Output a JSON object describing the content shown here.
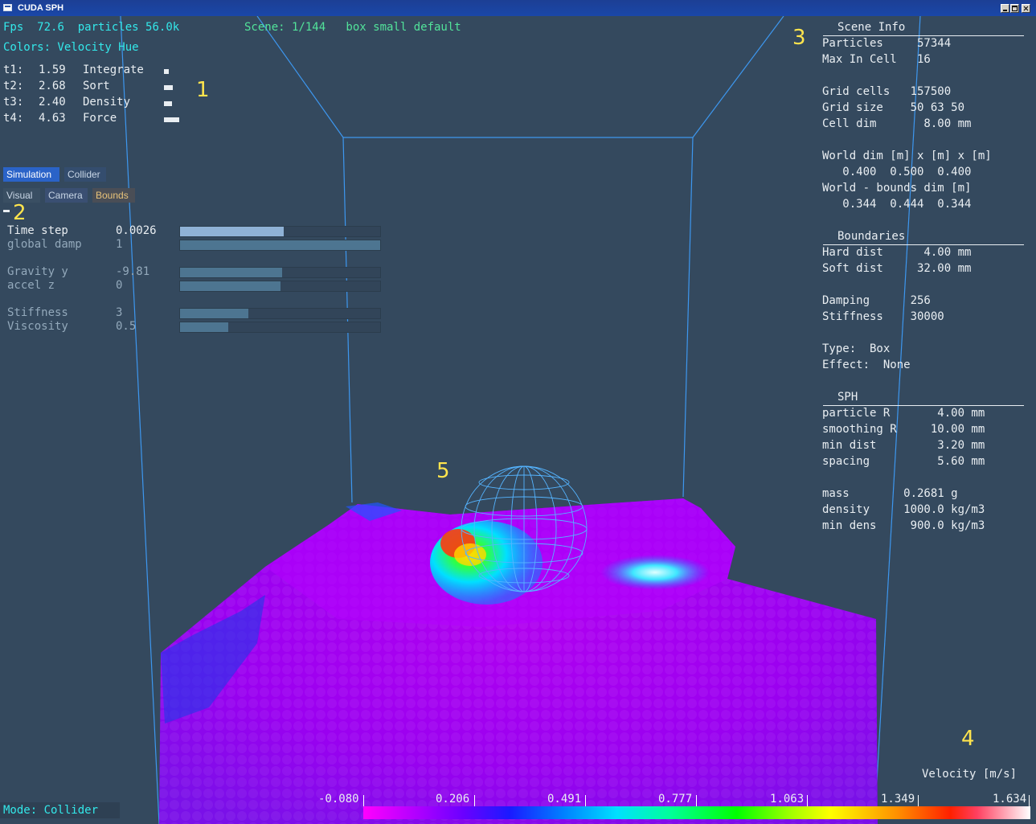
{
  "window": {
    "title": "CUDA SPH"
  },
  "hud": {
    "fps_label": "Fps",
    "fps_value": "72.6",
    "particles_label": "particles",
    "particles_value": "56.0k",
    "scene": "Scene: 1/144   box small default",
    "colors": "Colors: Velocity Hue",
    "timings": [
      {
        "id": "t1:",
        "value": "1.59",
        "name": "Integrate"
      },
      {
        "id": "t2:",
        "value": "2.68",
        "name": "Sort"
      },
      {
        "id": "t3:",
        "value": "2.40",
        "name": "Density"
      },
      {
        "id": "t4:",
        "value": "4.63",
        "name": "Force"
      }
    ]
  },
  "markers": [
    "1",
    "2",
    "3",
    "4",
    "5"
  ],
  "tabs": {
    "row1": [
      "Simulation",
      "Collider"
    ],
    "row2": [
      "Visual",
      "Camera",
      "Bounds"
    ],
    "active": "Simulation"
  },
  "params": [
    {
      "label": "Time step",
      "value": "0.0026",
      "fill": 0.52
    },
    {
      "label": "global damp",
      "value": "1",
      "fill": 1.0
    },
    {
      "label": "Gravity y",
      "value": "-9.81",
      "fill": 0.51
    },
    {
      "label": "accel z",
      "value": "0",
      "fill": 0.5
    },
    {
      "label": "Stiffness",
      "value": "3",
      "fill": 0.34
    },
    {
      "label": "Viscosity",
      "value": "0.5",
      "fill": 0.24
    }
  ],
  "scene_info": {
    "heading": "Scene Info",
    "particles": "Particles     57344",
    "max_in_cell": "Max In Cell   16",
    "grid_cells": "Grid cells   157500",
    "grid_size": "Grid size    50 63 50",
    "cell_dim": "Cell dim       8.00 mm",
    "world_dim_label": "World dim [m] x [m] x [m]",
    "world_dim_values": "   0.400  0.500  0.400",
    "world_bounds_label": "World - bounds dim [m]",
    "world_bounds_values": "   0.344  0.444  0.344",
    "boundaries_heading": "Boundaries",
    "hard_dist": "Hard dist      4.00 mm",
    "soft_dist": "Soft dist     32.00 mm",
    "damping": "Damping      256",
    "stiffness": "Stiffness    30000",
    "type": "Type:  Box",
    "effect": "Effect:  None",
    "sph_heading": "SPH",
    "particle_r": "particle R       4.00 mm",
    "smoothing_r": "smoothing R     10.00 mm",
    "min_dist": "min dist         3.20 mm",
    "spacing": "spacing          5.60 mm",
    "mass": "mass        0.2681 g",
    "density": "density     1000.0 kg/m3",
    "min_dens": "min dens     900.0 kg/m3"
  },
  "legend": {
    "title": "Velocity [m/s]",
    "ticks": [
      "-0.080",
      "0.206",
      "0.491",
      "0.777",
      "1.063",
      "1.349",
      "1.634"
    ]
  },
  "mode": "Mode: Collider",
  "colors": {
    "background": "#34495e",
    "hud_cyan": "#33e8ea",
    "scene_green": "#52e39a",
    "marker_yellow": "#ffe44d",
    "wire_blue": "#4aa8ff"
  }
}
